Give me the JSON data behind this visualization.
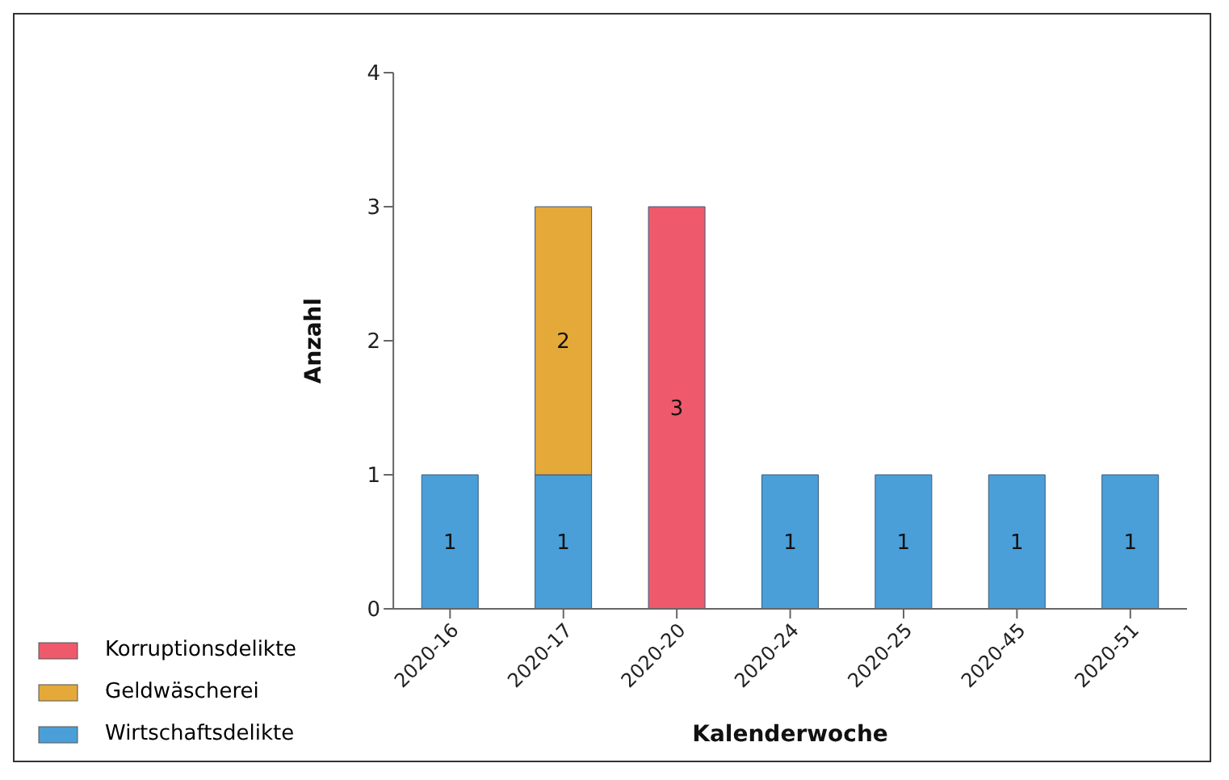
{
  "chart_data": {
    "type": "bar",
    "stacked": true,
    "xlabel": "Kalenderwoche",
    "ylabel": "Anzahl",
    "categories": [
      "2020-16",
      "2020-17",
      "2020-20",
      "2020-24",
      "2020-25",
      "2020-45",
      "2020-51"
    ],
    "series": [
      {
        "name": "Wirtschaftsdelikte",
        "color": "#4a9fd8",
        "values": [
          1,
          1,
          null,
          1,
          1,
          1,
          1
        ]
      },
      {
        "name": "Geldwäscherei",
        "color": "#e5a93a",
        "values": [
          null,
          2,
          null,
          null,
          null,
          null,
          null
        ]
      },
      {
        "name": "Korruptionsdelikte",
        "color": "#ee5a6b",
        "values": [
          null,
          null,
          3,
          null,
          null,
          null,
          null
        ]
      }
    ],
    "ylim": [
      0,
      4
    ],
    "yticks": [
      0,
      1,
      2,
      3,
      4
    ],
    "grid": false,
    "legend": "bottom left",
    "data_labels": true
  }
}
